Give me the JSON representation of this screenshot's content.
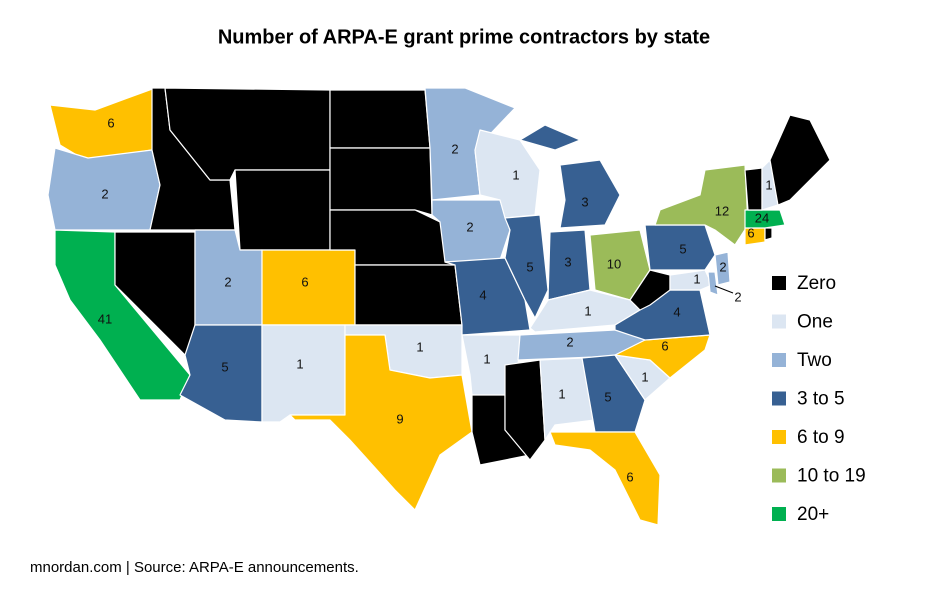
{
  "title": "Number of ARPA-E grant prime contractors by state",
  "source": "mnordan.com | Source: ARPA-E announcements.",
  "legend": [
    {
      "label": "Zero",
      "color": "#000000",
      "min": 0
    },
    {
      "label": "One",
      "color": "#dce6f2",
      "min": 1
    },
    {
      "label": "Two",
      "color": "#95b3d7",
      "min": 2
    },
    {
      "label": "3 to 5",
      "color": "#376092",
      "min": 3
    },
    {
      "label": "6 to 9",
      "color": "#ffc000",
      "min": 6
    },
    {
      "label": "10 to 19",
      "color": "#9bbb59",
      "min": 10
    },
    {
      "label": "20+",
      "color": "#00b050",
      "min": 20
    }
  ],
  "states": [
    6,
    2,
    41,
    0,
    0,
    0,
    0,
    2,
    6,
    5,
    1,
    0,
    0,
    0,
    0,
    1,
    9,
    2,
    2,
    4,
    1,
    0,
    1,
    5,
    3,
    3,
    10,
    1,
    2,
    0,
    1,
    5,
    6,
    1,
    6,
    4,
    0,
    5,
    12,
    1,
    2,
    2,
    6,
    0,
    24,
    0,
    1,
    0
  ]
}
